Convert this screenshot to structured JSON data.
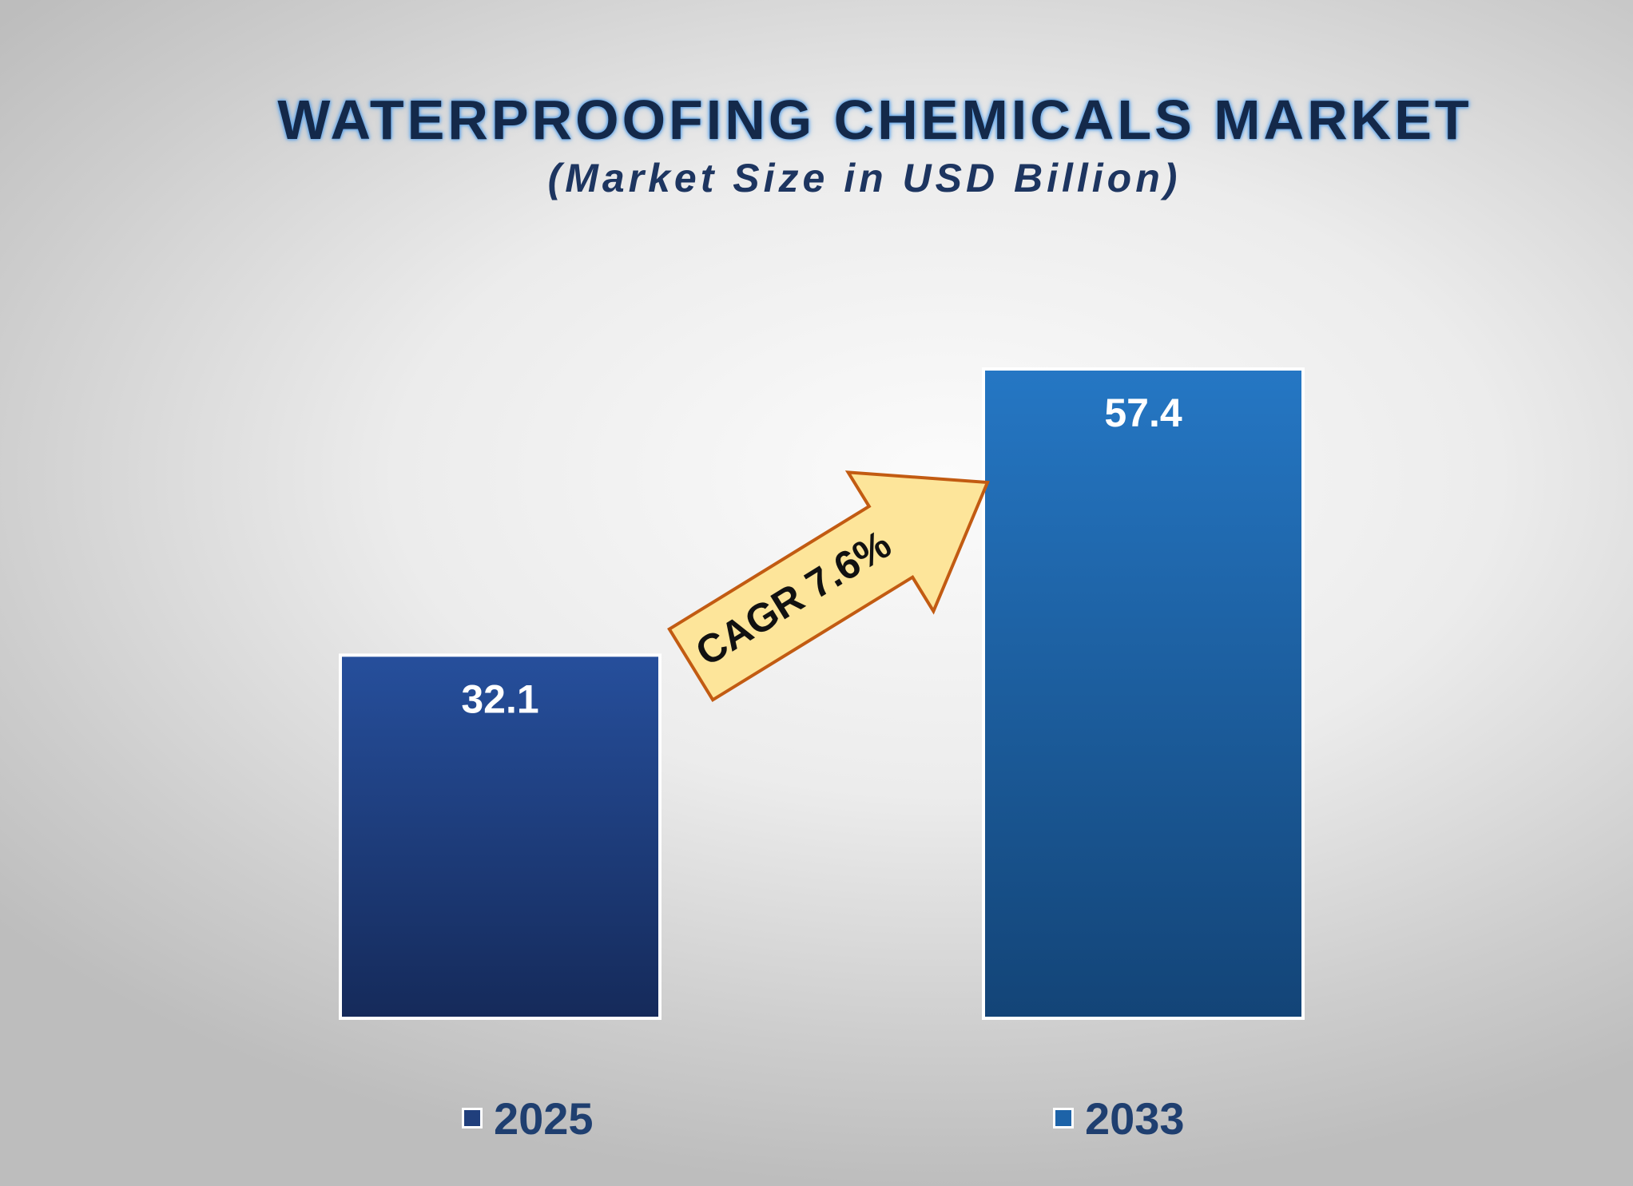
{
  "chart_data": {
    "type": "bar",
    "title": "WATERPROOFING CHEMICALS MARKET",
    "subtitle": "(Market Size in USD Billion)",
    "categories": [
      "2025",
      "2033"
    ],
    "values": [
      32.1,
      57.4
    ],
    "value_labels": [
      "32.1",
      "57.4"
    ],
    "colors": [
      "#203f7c",
      "#1d63a8"
    ],
    "annotation": "CAGR 7.6%",
    "ylim": [
      0,
      57.4
    ],
    "grid": false,
    "legend": "bottom"
  }
}
